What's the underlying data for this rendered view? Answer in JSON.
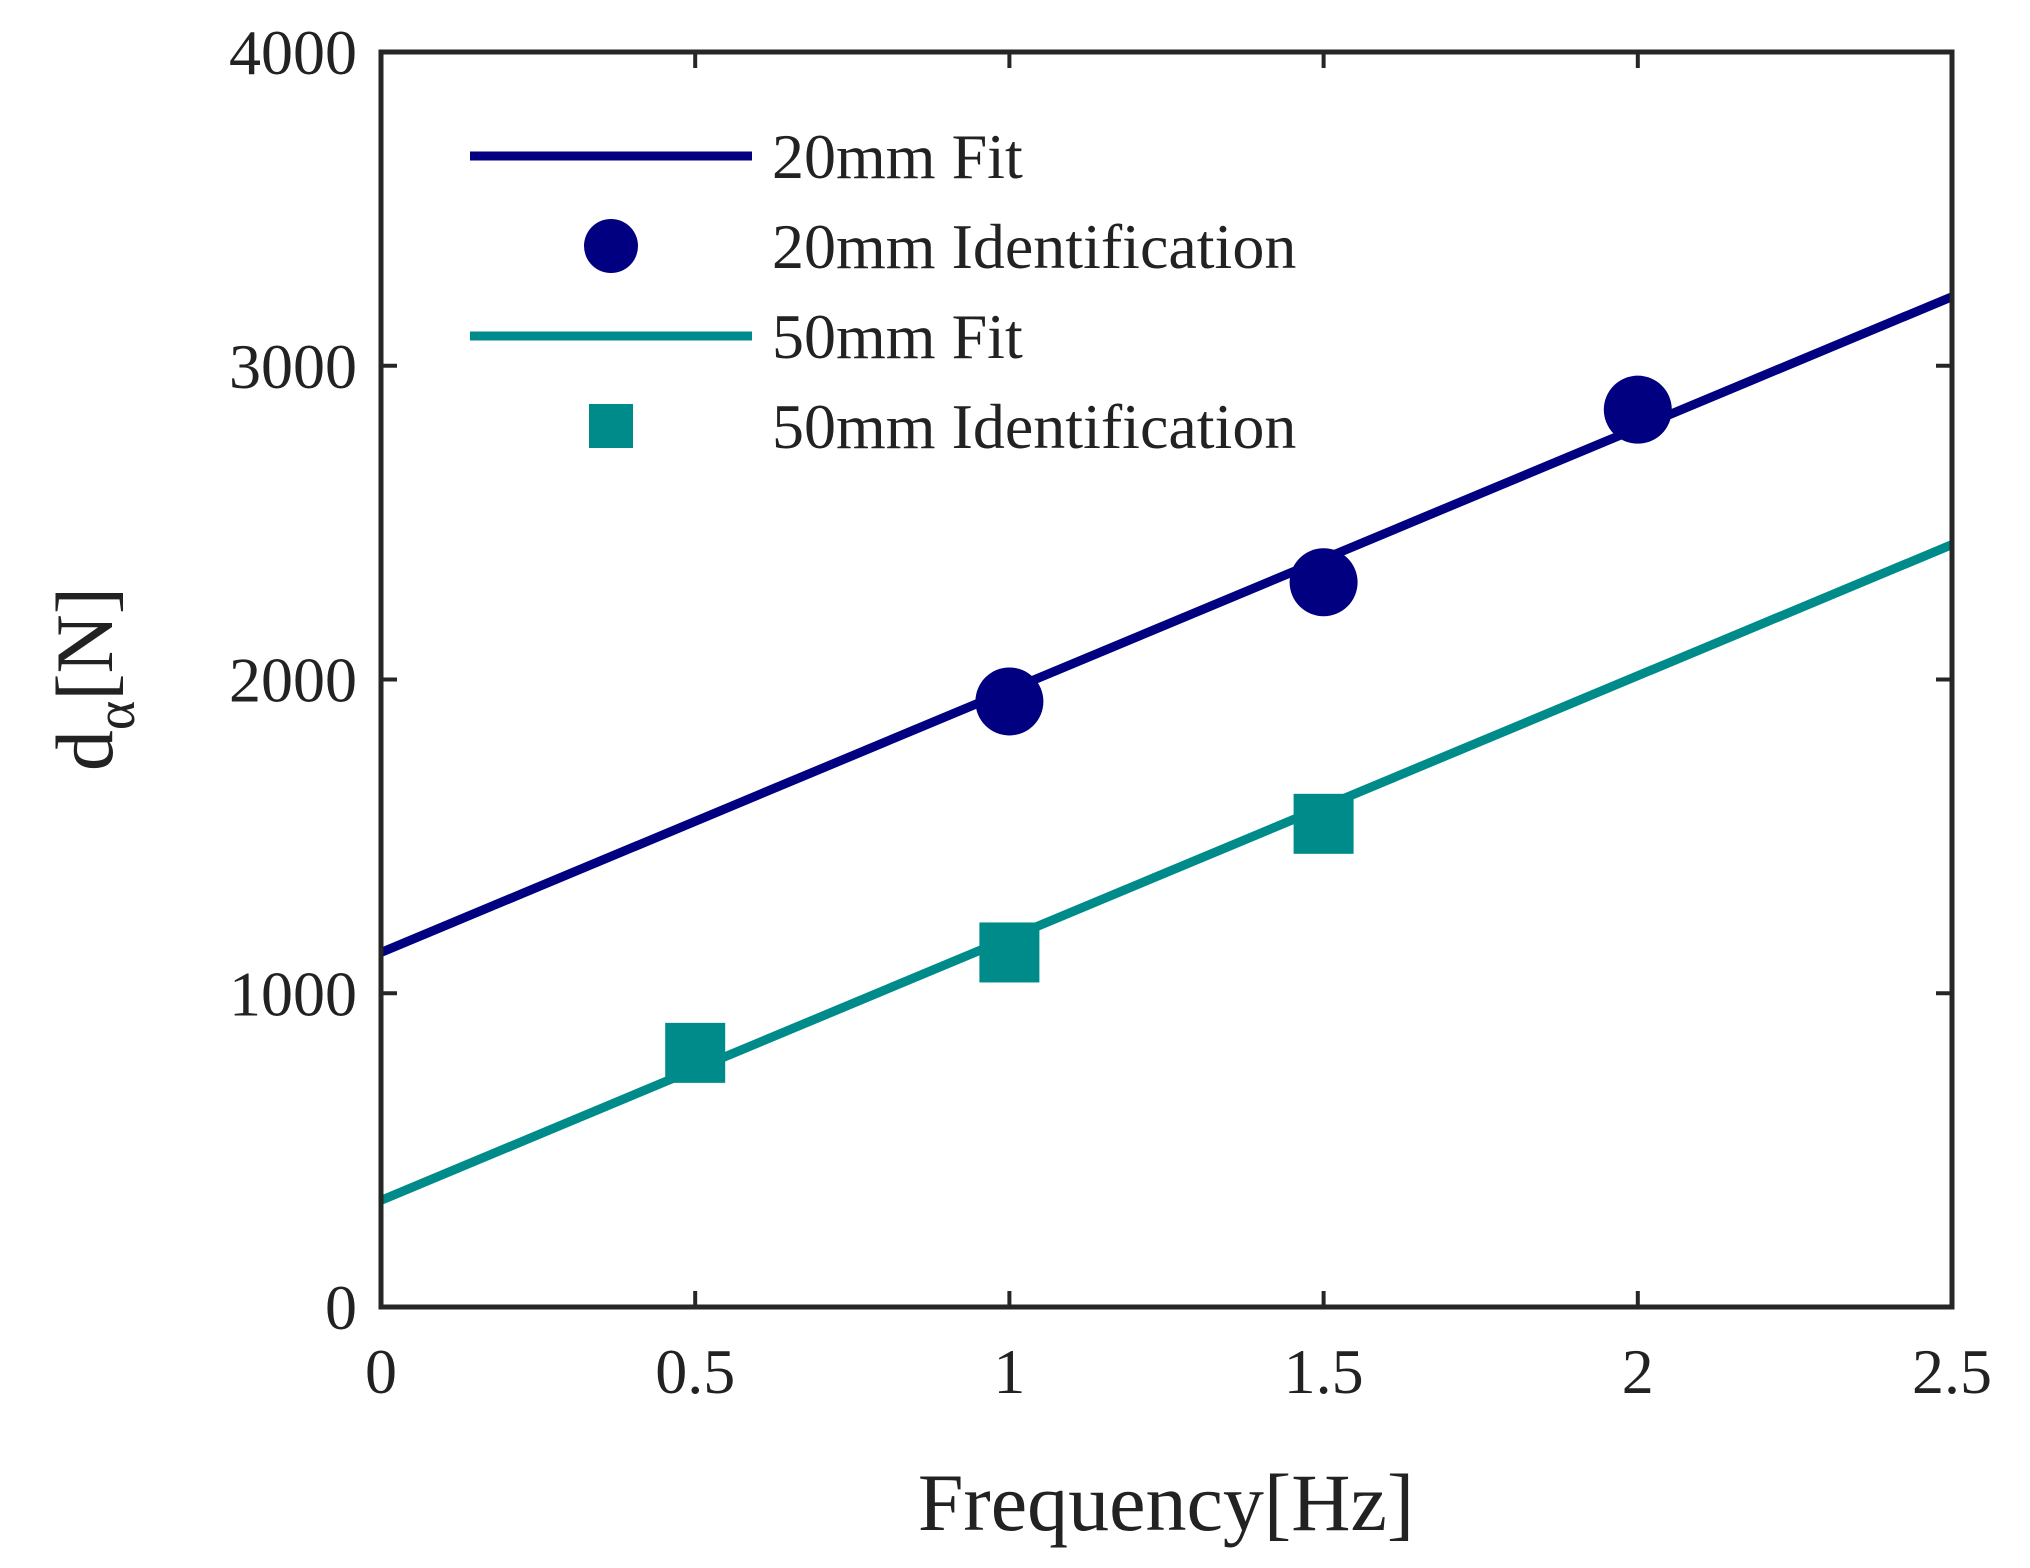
{
  "chart_data": {
    "type": "line",
    "xlabel": "Frequency[Hz]",
    "ylabel_main": "d",
    "ylabel_sub": "α",
    "ylabel_unit": "[N]",
    "xlim": [
      0,
      2.5
    ],
    "ylim": [
      0,
      4000
    ],
    "x_ticks": [
      0,
      0.5,
      1,
      1.5,
      2,
      2.5
    ],
    "x_tick_labels": [
      "0",
      "0.5",
      "1",
      "1.5",
      "2",
      "2.5"
    ],
    "y_ticks": [
      0,
      1000,
      2000,
      3000,
      4000
    ],
    "y_tick_labels": [
      "0",
      "1000",
      "2000",
      "3000",
      "4000"
    ],
    "grid": false,
    "legend_position": "top-left",
    "series": [
      {
        "name": "20mm Fit",
        "kind": "line",
        "color": "#000080",
        "x": [
          0,
          2.5
        ],
        "y": [
          1130,
          3220
        ]
      },
      {
        "name": "20mm Identification",
        "kind": "marker",
        "marker": "circle",
        "color": "#000080",
        "x": [
          1,
          1.5,
          2
        ],
        "y": [
          1930,
          2310,
          2860
        ]
      },
      {
        "name": "50mm Fit",
        "kind": "line",
        "color": "#008B8B",
        "x": [
          0,
          2.5
        ],
        "y": [
          340,
          2430
        ]
      },
      {
        "name": "50mm Identification",
        "kind": "marker",
        "marker": "square",
        "color": "#008B8B",
        "x": [
          0.5,
          1,
          1.5
        ],
        "y": [
          810,
          1130,
          1540
        ]
      }
    ]
  }
}
